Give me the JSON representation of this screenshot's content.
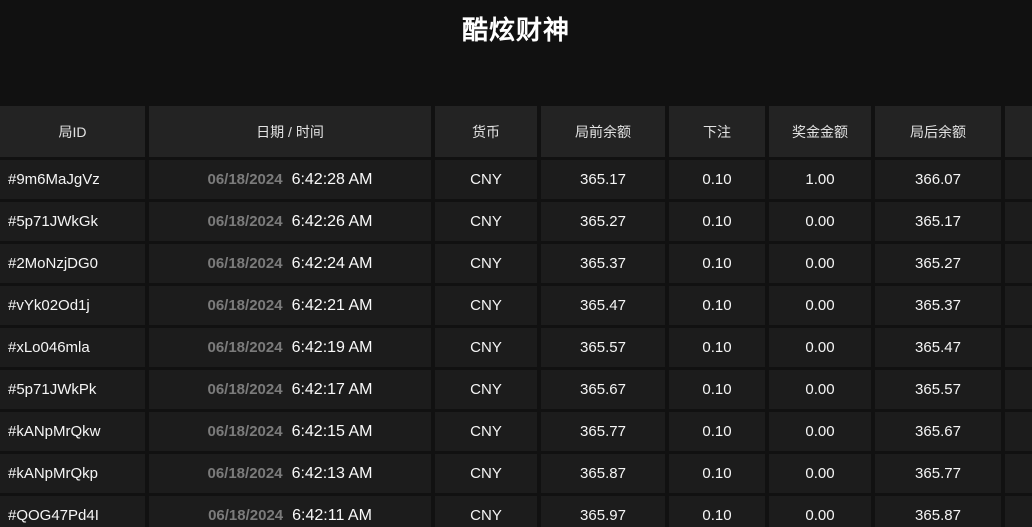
{
  "title": "酷炫财神",
  "colors": {
    "page_background": "#111111",
    "header_background": "#232323",
    "row_background": "#1c1c1c",
    "primary_text": "#f5f5f5",
    "date_text": "#7b7b7b"
  },
  "table": {
    "headers": {
      "round_id": "局ID",
      "datetime": "日期 / 时间",
      "currency": "货币",
      "balance_before": "局前余额",
      "bet": "下注",
      "prize": "奖金金额",
      "balance_after": "局后余额",
      "extra": ""
    },
    "rows": [
      {
        "id": "#9m6MaJgVz",
        "date": "06/18/2024",
        "time": "6:42:28 AM",
        "currency": "CNY",
        "balance_before": "365.17",
        "bet": "0.10",
        "prize": "1.00",
        "balance_after": "366.07"
      },
      {
        "id": "#5p71JWkGk",
        "date": "06/18/2024",
        "time": "6:42:26 AM",
        "currency": "CNY",
        "balance_before": "365.27",
        "bet": "0.10",
        "prize": "0.00",
        "balance_after": "365.17"
      },
      {
        "id": "#2MoNzjDG0",
        "date": "06/18/2024",
        "time": "6:42:24 AM",
        "currency": "CNY",
        "balance_before": "365.37",
        "bet": "0.10",
        "prize": "0.00",
        "balance_after": "365.27"
      },
      {
        "id": "#vYk02Od1j",
        "date": "06/18/2024",
        "time": "6:42:21 AM",
        "currency": "CNY",
        "balance_before": "365.47",
        "bet": "0.10",
        "prize": "0.00",
        "balance_after": "365.37"
      },
      {
        "id": "#xLo046mla",
        "date": "06/18/2024",
        "time": "6:42:19 AM",
        "currency": "CNY",
        "balance_before": "365.57",
        "bet": "0.10",
        "prize": "0.00",
        "balance_after": "365.47"
      },
      {
        "id": "#5p71JWkPk",
        "date": "06/18/2024",
        "time": "6:42:17 AM",
        "currency": "CNY",
        "balance_before": "365.67",
        "bet": "0.10",
        "prize": "0.00",
        "balance_after": "365.57"
      },
      {
        "id": "#kANpMrQkw",
        "date": "06/18/2024",
        "time": "6:42:15 AM",
        "currency": "CNY",
        "balance_before": "365.77",
        "bet": "0.10",
        "prize": "0.00",
        "balance_after": "365.67"
      },
      {
        "id": "#kANpMrQkp",
        "date": "06/18/2024",
        "time": "6:42:13 AM",
        "currency": "CNY",
        "balance_before": "365.87",
        "bet": "0.10",
        "prize": "0.00",
        "balance_after": "365.77"
      },
      {
        "id": "#QOG47Pd4I",
        "date": "06/18/2024",
        "time": "6:42:11 AM",
        "currency": "CNY",
        "balance_before": "365.97",
        "bet": "0.10",
        "prize": "0.00",
        "balance_after": "365.87"
      }
    ]
  }
}
